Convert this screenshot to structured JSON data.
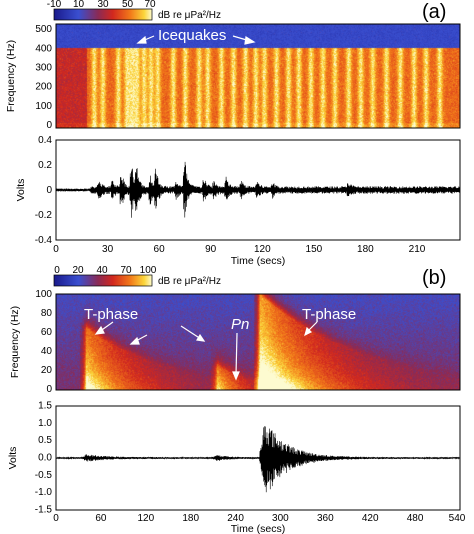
{
  "figure": {
    "panels": [
      {
        "panel_label": "(a)",
        "colorbar": {
          "ticks": [
            "-10",
            "10",
            "30",
            "50",
            "70"
          ],
          "label": "dB re μPa²/Hz",
          "range": [
            -10,
            70
          ]
        },
        "spectrogram": {
          "ylabel": "Frequency (Hz)",
          "yticks": [
            "0",
            "100",
            "200",
            "300",
            "400",
            "500"
          ],
          "ylim": [
            0,
            530
          ],
          "annotations": [
            "Icequakes"
          ]
        },
        "waveform": {
          "ylabel": "Volts",
          "yticks": [
            "-0.4",
            "-0.2",
            "0",
            "0.2",
            "0.4"
          ],
          "ylim": [
            -0.4,
            0.4
          ],
          "xlabel": "Time (secs)",
          "xticks": [
            "0",
            "30",
            "60",
            "90",
            "120",
            "150",
            "180",
            "210"
          ],
          "xlim": [
            0,
            235
          ]
        }
      },
      {
        "panel_label": "(b)",
        "colorbar": {
          "ticks": [
            "0",
            "20",
            "40",
            "70",
            "100"
          ],
          "label": "dB re μPa²/Hz",
          "range": [
            0,
            100
          ]
        },
        "spectrogram": {
          "ylabel": "Frequency (Hz)",
          "yticks": [
            "0",
            "20",
            "40",
            "60",
            "80",
            "100"
          ],
          "ylim": [
            0,
            100
          ],
          "annotations": [
            "T-phase",
            "Pn",
            "T-phase"
          ]
        },
        "waveform": {
          "ylabel": "Volts",
          "yticks": [
            "-1.5",
            "-1.0",
            "-0.5",
            "0.0",
            "0.5",
            "1.0",
            "1.5"
          ],
          "ylim": [
            -1.5,
            1.5
          ],
          "xlabel": "Time (secs)",
          "xticks": [
            "0",
            "60",
            "120",
            "180",
            "240",
            "300",
            "360",
            "420",
            "480",
            "540"
          ],
          "xlim": [
            0,
            540
          ]
        }
      }
    ]
  },
  "chart_data": [
    {
      "type": "heatmap",
      "title": "(a)",
      "ylabel": "Frequency (Hz)",
      "ylim": [
        0,
        530
      ],
      "xlim": [
        0,
        235
      ],
      "colorbar": {
        "label": "dB re μPa²/Hz",
        "range": [
          -10,
          70
        ]
      },
      "annotations": [
        "Icequakes"
      ],
      "bands": {
        "quiet_above_hz": 410,
        "event_times_s": [
          22,
          27,
          36,
          41,
          44,
          47,
          51,
          55,
          59,
          68,
          75,
          83,
          88,
          96,
          103,
          110,
          116,
          121,
          128,
          135,
          141,
          148,
          155,
          162,
          170,
          177,
          184,
          192,
          200,
          208,
          215,
          223
        ]
      }
    },
    {
      "type": "line",
      "title": "",
      "xlabel": "Time (secs)",
      "ylabel": "Volts",
      "xlim": [
        0,
        235
      ],
      "ylim": [
        -0.4,
        0.4
      ],
      "bursts": [
        {
          "t": 25,
          "amp": 0.07
        },
        {
          "t": 33,
          "amp": 0.06
        },
        {
          "t": 38,
          "amp": 0.14
        },
        {
          "t": 44,
          "amp": 0.21
        },
        {
          "t": 47,
          "amp": 0.15
        },
        {
          "t": 55,
          "amp": 0.1
        },
        {
          "t": 58,
          "amp": 0.16
        },
        {
          "t": 70,
          "amp": 0.06
        },
        {
          "t": 75,
          "amp": 0.23
        },
        {
          "t": 86,
          "amp": 0.09
        },
        {
          "t": 92,
          "amp": 0.05
        },
        {
          "t": 99,
          "amp": 0.08
        },
        {
          "t": 108,
          "amp": 0.05
        },
        {
          "t": 117,
          "amp": 0.05
        },
        {
          "t": 126,
          "amp": 0.04
        },
        {
          "t": 170,
          "amp": 0.05
        }
      ]
    },
    {
      "type": "heatmap",
      "title": "(b)",
      "ylabel": "Frequency (Hz)",
      "ylim": [
        0,
        100
      ],
      "xlim": [
        0,
        540
      ],
      "colorbar": {
        "label": "dB re μPa²/Hz",
        "range": [
          0,
          100
        ]
      },
      "annotations": [
        "T-phase",
        "Pn",
        "T-phase"
      ],
      "events": [
        {
          "name": "T-phase",
          "t": 40,
          "peak_hz": 65,
          "decay_s": 70,
          "strength": 0.75
        },
        {
          "name": "Pn",
          "t": 215,
          "peak_hz": 25,
          "decay_s": 35,
          "strength": 0.55
        },
        {
          "name": "T-phase",
          "t": 272,
          "peak_hz": 100,
          "decay_s": 90,
          "strength": 1.0
        }
      ]
    },
    {
      "type": "line",
      "title": "",
      "xlabel": "Time (secs)",
      "ylabel": "Volts",
      "xlim": [
        0,
        540
      ],
      "ylim": [
        -1.5,
        1.5
      ],
      "background_amp": 0.025,
      "bursts": [
        {
          "t": 40,
          "amp": 0.09,
          "decay_s": 25
        },
        {
          "t": 215,
          "amp": 0.07,
          "decay_s": 15
        },
        {
          "t": 278,
          "amp": 1.2,
          "decay_s": 28
        }
      ]
    }
  ]
}
